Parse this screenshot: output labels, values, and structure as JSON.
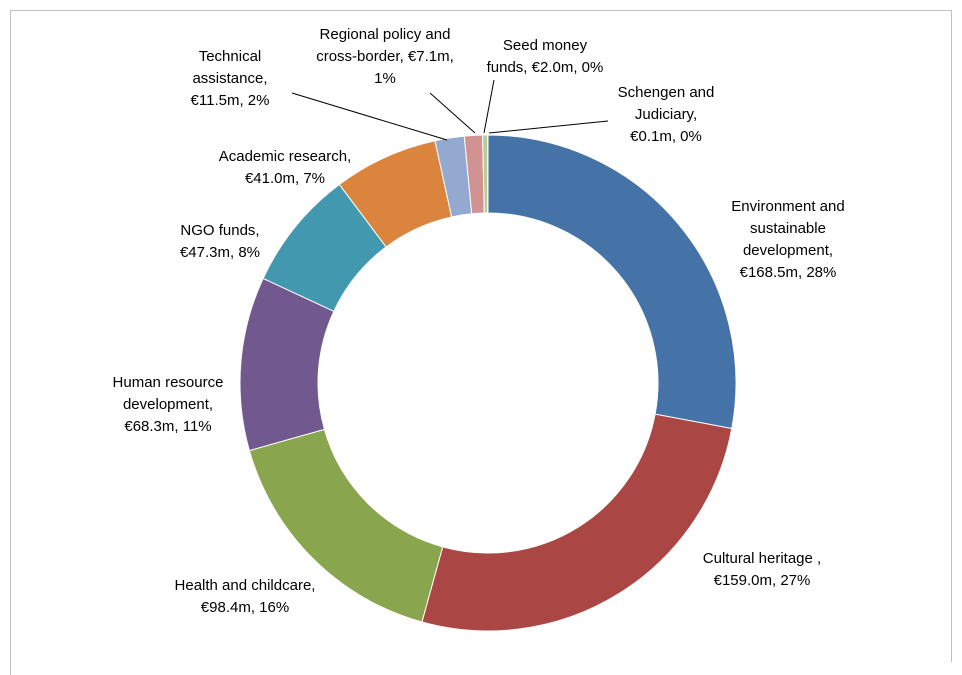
{
  "chart_data": {
    "type": "donut",
    "categories": [
      "Environment and sustainable development,",
      "Cultural heritage ,",
      "Health and childcare,",
      "Human resource development,",
      "NGO funds,",
      "Academic research,",
      "Technical assistance,",
      "Regional policy and cross-border,",
      "Seed money funds,",
      "Schengen and Judiciary,"
    ],
    "values": [
      168.5,
      159.0,
      98.4,
      68.3,
      47.3,
      41.0,
      11.5,
      7.1,
      2.0,
      0.1
    ],
    "value_labels": [
      "€168.5m, 28%",
      "€159.0m, 27%",
      "€98.4m, 16%",
      "€68.3m, 11%",
      "€47.3m, 8%",
      "€41.0m, 7%",
      "€11.5m, 2%",
      "€7.1m, 1%",
      "€2.0m, 0%",
      "€0.1m, 0%"
    ],
    "colors": [
      "#4572a7",
      "#aa4643",
      "#89a54e",
      "#71588f",
      "#4198af",
      "#db843d",
      "#93a9cf",
      "#d19392",
      "#b9cd96",
      "#a99bbd"
    ]
  }
}
